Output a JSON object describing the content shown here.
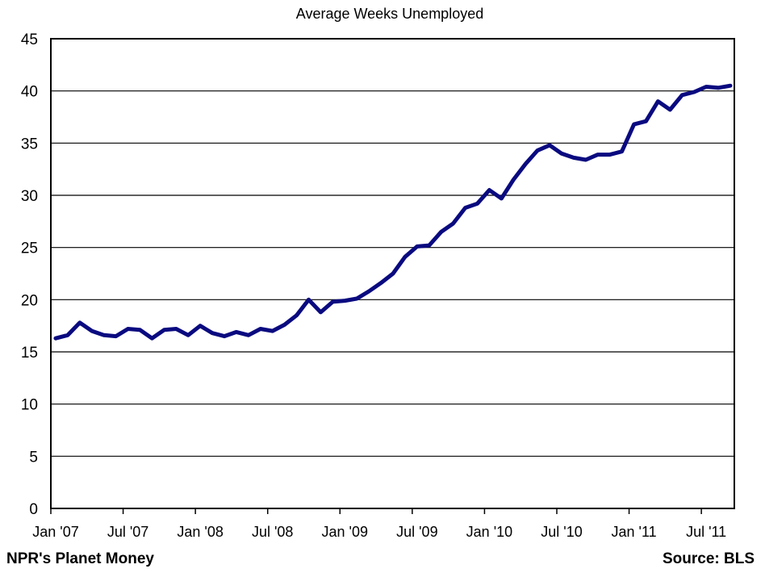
{
  "footer": {
    "credit": "NPR's Planet Money",
    "source": "Source: BLS"
  },
  "colors": {
    "line": "#0a0a80",
    "grid": "#000000",
    "background": "#ffffff"
  },
  "chart_data": {
    "type": "line",
    "title": "Average Weeks Unemployed",
    "xlabel": "",
    "ylabel": "",
    "ylim": [
      0,
      45
    ],
    "yticks": [
      0,
      5,
      10,
      15,
      20,
      25,
      30,
      35,
      40,
      45
    ],
    "grid": "horizontal",
    "legend": "none",
    "x_tick_labels": [
      "Jan '07",
      "Jul '07",
      "Jan '08",
      "Jul '08",
      "Jan '09",
      "Jul '09",
      "Jan '10",
      "Jul '10",
      "Jan '11",
      "Jul '11"
    ],
    "x_tick_indices": [
      0,
      6,
      12,
      18,
      24,
      30,
      36,
      42,
      48,
      54
    ],
    "x_start": "Jan 2007",
    "x_end": "Sep 2011",
    "series": [
      {
        "name": "",
        "values": [
          16.3,
          16.6,
          17.8,
          17.0,
          16.6,
          16.5,
          17.2,
          17.1,
          16.3,
          17.1,
          17.2,
          16.6,
          17.5,
          16.8,
          16.5,
          16.9,
          16.6,
          17.2,
          17.0,
          17.6,
          18.5,
          20.0,
          18.8,
          19.8,
          19.9,
          20.1,
          20.8,
          21.6,
          22.5,
          24.1,
          25.1,
          25.2,
          26.5,
          27.3,
          28.8,
          29.2,
          30.5,
          29.7,
          31.5,
          33.0,
          34.3,
          34.8,
          34.0,
          33.6,
          33.4,
          33.9,
          33.9,
          34.2,
          36.8,
          37.1,
          39.0,
          38.2,
          39.6,
          39.9,
          40.4,
          40.3,
          40.5
        ]
      }
    ]
  }
}
